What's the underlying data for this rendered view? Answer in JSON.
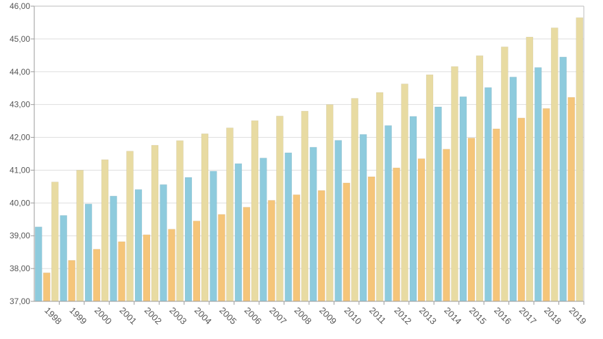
{
  "chart_data": {
    "type": "bar",
    "title": "",
    "xlabel": "",
    "ylabel": "",
    "ylim": [
      37,
      46
    ],
    "y_ticks": [
      "37,00",
      "38,00",
      "39,00",
      "40,00",
      "41,00",
      "42,00",
      "43,00",
      "44,00",
      "45,00",
      "46,00"
    ],
    "grid": true,
    "legend": "none",
    "categories": [
      "1998",
      "1999",
      "2000",
      "2001",
      "2002",
      "2003",
      "2004",
      "2005",
      "2006",
      "2007",
      "2008",
      "2009",
      "2010",
      "2011",
      "2012",
      "2013",
      "2014",
      "2015",
      "2016",
      "2017",
      "2018",
      "2019"
    ],
    "series": [
      {
        "color": "#8ecbdd",
        "values": [
          39.27,
          39.62,
          39.97,
          40.21,
          40.41,
          40.56,
          40.78,
          40.97,
          41.2,
          41.37,
          41.53,
          41.7,
          41.91,
          42.09,
          42.36,
          42.64,
          42.93,
          43.24,
          43.52,
          43.84,
          44.13,
          44.45
        ]
      },
      {
        "color": "#f5c57a",
        "values": [
          37.87,
          38.25,
          38.59,
          38.82,
          39.03,
          39.2,
          39.45,
          39.65,
          39.87,
          40.08,
          40.25,
          40.38,
          40.61,
          40.8,
          41.07,
          41.35,
          41.64,
          41.98,
          42.26,
          42.59,
          42.88,
          43.22
        ]
      },
      {
        "color": "#e8dba2",
        "values": [
          40.64,
          41.0,
          41.32,
          41.58,
          41.76,
          41.9,
          42.11,
          42.29,
          42.51,
          42.65,
          42.8,
          43.0,
          43.19,
          43.37,
          43.63,
          43.91,
          44.16,
          44.49,
          44.76,
          45.06,
          45.34,
          45.65
        ]
      }
    ]
  }
}
